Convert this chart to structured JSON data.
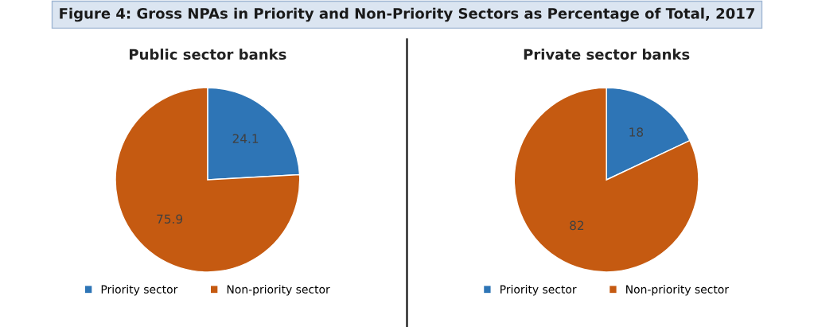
{
  "chart_data": [
    {
      "type": "pie",
      "title": "Public sector banks",
      "annotations": [
        "Figure 4: Gross NPAs in Priority and Non-Priority Sectors as Percentage of Total, 2017"
      ],
      "categories": [
        "Priority sector",
        "Non-priority sector"
      ],
      "values": [
        24.1,
        75.9
      ],
      "colors": [
        "#2e75b6",
        "#c55a11"
      ],
      "data_labels": true,
      "legend": "bottom"
    },
    {
      "type": "pie",
      "title": "Private sector banks",
      "categories": [
        "Priority sector",
        "Non-priority sector"
      ],
      "values": [
        18,
        82
      ],
      "colors": [
        "#2e75b6",
        "#c55a11"
      ],
      "data_labels": true,
      "legend": "bottom"
    }
  ]
}
